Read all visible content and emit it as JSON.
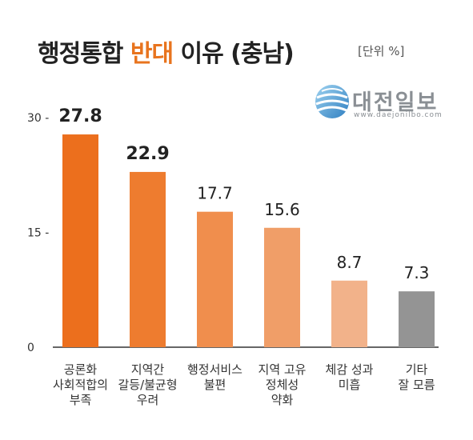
{
  "title": {
    "part1": "행정통합 ",
    "part2": "반대",
    "part3": " 이유 (충남)"
  },
  "unit": "[단위 %]",
  "logo": {
    "name": "대전일보",
    "url": "www.daejonilbo.com"
  },
  "colors": {
    "accent": "#e8741e",
    "bars": [
      "#ec6f1d",
      "#ee7c2f",
      "#f08e4d",
      "#f09e68",
      "#f2b28a",
      "#949494"
    ]
  },
  "chart_data": {
    "type": "bar",
    "categories": [
      "공론화\n사회적합의\n부족",
      "지역간\n갈등/불균형\n우려",
      "행정서비스\n불편",
      "지역 고유\n정체성\n약화",
      "체감 성과\n미흡",
      "기타\n잘 모름"
    ],
    "values": [
      27.8,
      22.9,
      17.7,
      15.6,
      8.7,
      7.3
    ],
    "value_labels": [
      "27.8",
      "22.9",
      "17.7",
      "15.6",
      "8.7",
      "7.3"
    ],
    "yticks": [
      0,
      15,
      30
    ],
    "ytick_labels": [
      "0",
      "15 -",
      "30 -"
    ],
    "ylim": [
      0,
      30
    ],
    "grid": false,
    "legend": "none"
  }
}
